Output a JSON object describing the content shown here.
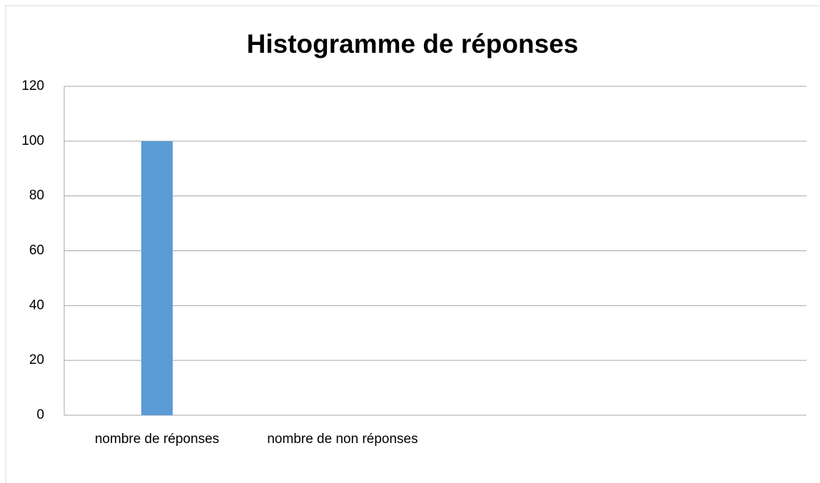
{
  "chart_data": {
    "type": "bar",
    "title": "Histogramme de réponses",
    "categories": [
      "nombre de réponses",
      "nombre de non réponses",
      null,
      null
    ],
    "values": [
      100,
      0,
      null,
      null
    ],
    "color": "#5b9bd5",
    "ylim": [
      0,
      120
    ],
    "yticks": [
      0,
      20,
      40,
      60,
      80,
      100,
      120
    ],
    "grid": true
  }
}
